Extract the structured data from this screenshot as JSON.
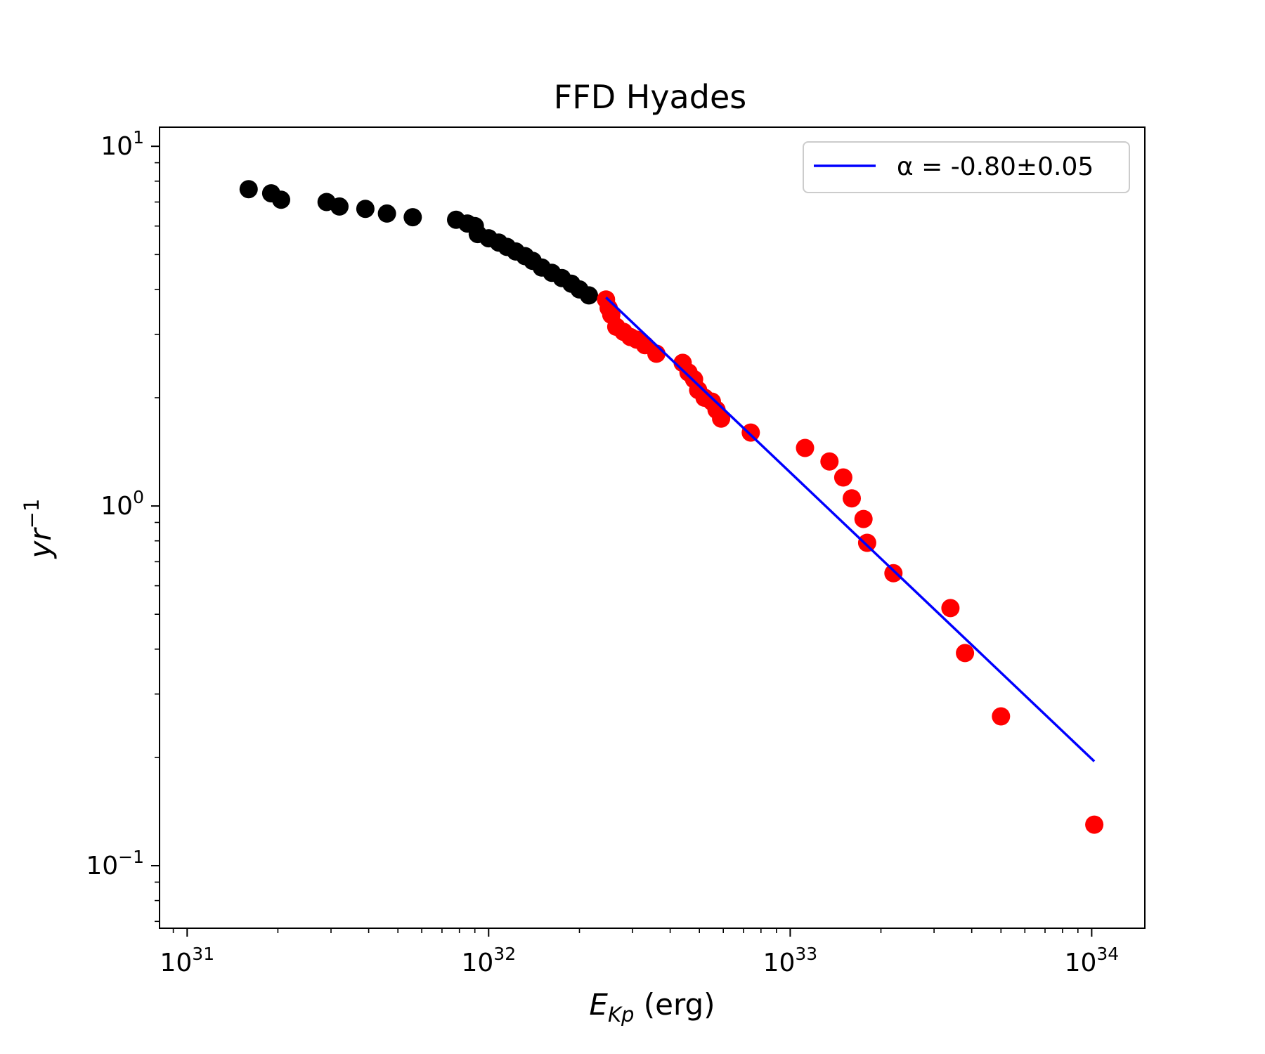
{
  "chart_data": {
    "type": "scatter",
    "title": "FFD Hyades",
    "xlabel": {
      "base": "E",
      "subscript": "Kp",
      "suffix": " (erg)"
    },
    "ylabel": {
      "base": "yr",
      "superscript": "−1"
    },
    "x_scale": "log",
    "y_scale": "log",
    "xlim": [
      8.1e+30,
      1.5e+34
    ],
    "ylim": [
      0.067,
      11.3
    ],
    "grid": false,
    "legend_position": "top-right",
    "x_ticks": [
      {
        "value": 1e+31,
        "base": "10",
        "exp": "31"
      },
      {
        "value": 1e+32,
        "base": "10",
        "exp": "32"
      },
      {
        "value": 1e+33,
        "base": "10",
        "exp": "33"
      },
      {
        "value": 1e+34,
        "base": "10",
        "exp": "34"
      }
    ],
    "y_ticks": [
      {
        "value": 10,
        "base": "10",
        "exp": "1"
      },
      {
        "value": 1,
        "base": "10",
        "exp": "0"
      },
      {
        "value": 0.1,
        "base": "10",
        "exp": "−1"
      }
    ],
    "colors": {
      "below_fit": "#000000",
      "fitted": "#ff0000",
      "fit_line": "#0000ff"
    },
    "series": [
      {
        "color": "#000000",
        "points": [
          [
            1.6e+31,
            7.6
          ],
          [
            1.9e+31,
            7.4
          ],
          [
            2.05e+31,
            7.1
          ],
          [
            2.9e+31,
            7.0
          ],
          [
            3.2e+31,
            6.8
          ],
          [
            3.9e+31,
            6.7
          ],
          [
            4.6e+31,
            6.5
          ],
          [
            5.6e+31,
            6.35
          ],
          [
            7.8e+31,
            6.25
          ],
          [
            8.5e+31,
            6.1
          ],
          [
            9e+31,
            6.0
          ],
          [
            9.2e+31,
            5.7
          ],
          [
            1e+32,
            5.55
          ],
          [
            1.08e+32,
            5.4
          ],
          [
            1.15e+32,
            5.25
          ],
          [
            1.23e+32,
            5.1
          ],
          [
            1.32e+32,
            4.95
          ],
          [
            1.4e+32,
            4.8
          ],
          [
            1.5e+32,
            4.6
          ],
          [
            1.62e+32,
            4.45
          ],
          [
            1.75e+32,
            4.3
          ],
          [
            1.88e+32,
            4.15
          ],
          [
            2e+32,
            4.0
          ],
          [
            2.15e+32,
            3.85
          ]
        ]
      },
      {
        "color": "#ff0000",
        "points": [
          [
            2.45e+32,
            3.75
          ],
          [
            2.5e+32,
            3.55
          ],
          [
            2.55e+32,
            3.4
          ],
          [
            2.65e+32,
            3.15
          ],
          [
            2.8e+32,
            3.05
          ],
          [
            2.95e+32,
            2.95
          ],
          [
            3.1e+32,
            2.9
          ],
          [
            3.3e+32,
            2.8
          ],
          [
            3.6e+32,
            2.65
          ],
          [
            4.4e+32,
            2.5
          ],
          [
            4.6e+32,
            2.35
          ],
          [
            4.8e+32,
            2.25
          ],
          [
            4.95e+32,
            2.1
          ],
          [
            5.2e+32,
            2.0
          ],
          [
            5.5e+32,
            1.95
          ],
          [
            5.7e+32,
            1.85
          ],
          [
            5.9e+32,
            1.75
          ],
          [
            7.4e+32,
            1.6
          ],
          [
            1.12e+33,
            1.45
          ],
          [
            1.35e+33,
            1.33
          ],
          [
            1.5e+33,
            1.2
          ],
          [
            1.6e+33,
            1.05
          ],
          [
            1.75e+33,
            0.92
          ],
          [
            1.8e+33,
            0.79
          ],
          [
            2.2e+33,
            0.65
          ],
          [
            3.4e+33,
            0.52
          ],
          [
            3.8e+33,
            0.39
          ],
          [
            5e+33,
            0.26
          ],
          [
            1.02e+34,
            0.13
          ]
        ]
      }
    ],
    "fit_line": {
      "name": "α = -0.80±0.05",
      "color": "#0000ff",
      "points": [
        [
          2.45e+32,
          3.8
        ],
        [
          1.02e+34,
          0.195
        ]
      ]
    }
  }
}
